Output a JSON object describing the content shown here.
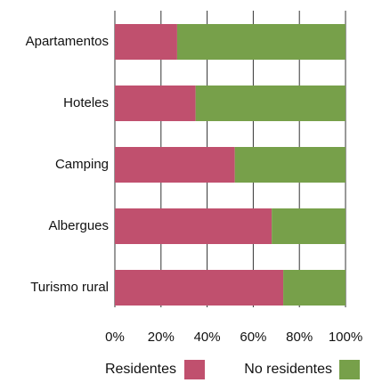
{
  "chart_data": {
    "type": "stacked-bar-horizontal",
    "categories": [
      "Apartamentos",
      "Hoteles",
      "Camping",
      "Albergues",
      "Turismo rural"
    ],
    "series": [
      {
        "name": "Residentes",
        "color": "#c0506e",
        "values": [
          27,
          35,
          52,
          68,
          73
        ]
      },
      {
        "name": "No residentes",
        "color": "#77a04a",
        "values": [
          73,
          65,
          48,
          32,
          27
        ]
      }
    ],
    "xlim": [
      0,
      100
    ],
    "xticks": [
      {
        "value": 0,
        "label": "0%"
      },
      {
        "value": 20,
        "label": "20%"
      },
      {
        "value": 40,
        "label": "40%"
      },
      {
        "value": 60,
        "label": "60%"
      },
      {
        "value": 80,
        "label": "80%"
      },
      {
        "value": 100,
        "label": "100%"
      }
    ],
    "grid": true,
    "legend": "bottom"
  }
}
